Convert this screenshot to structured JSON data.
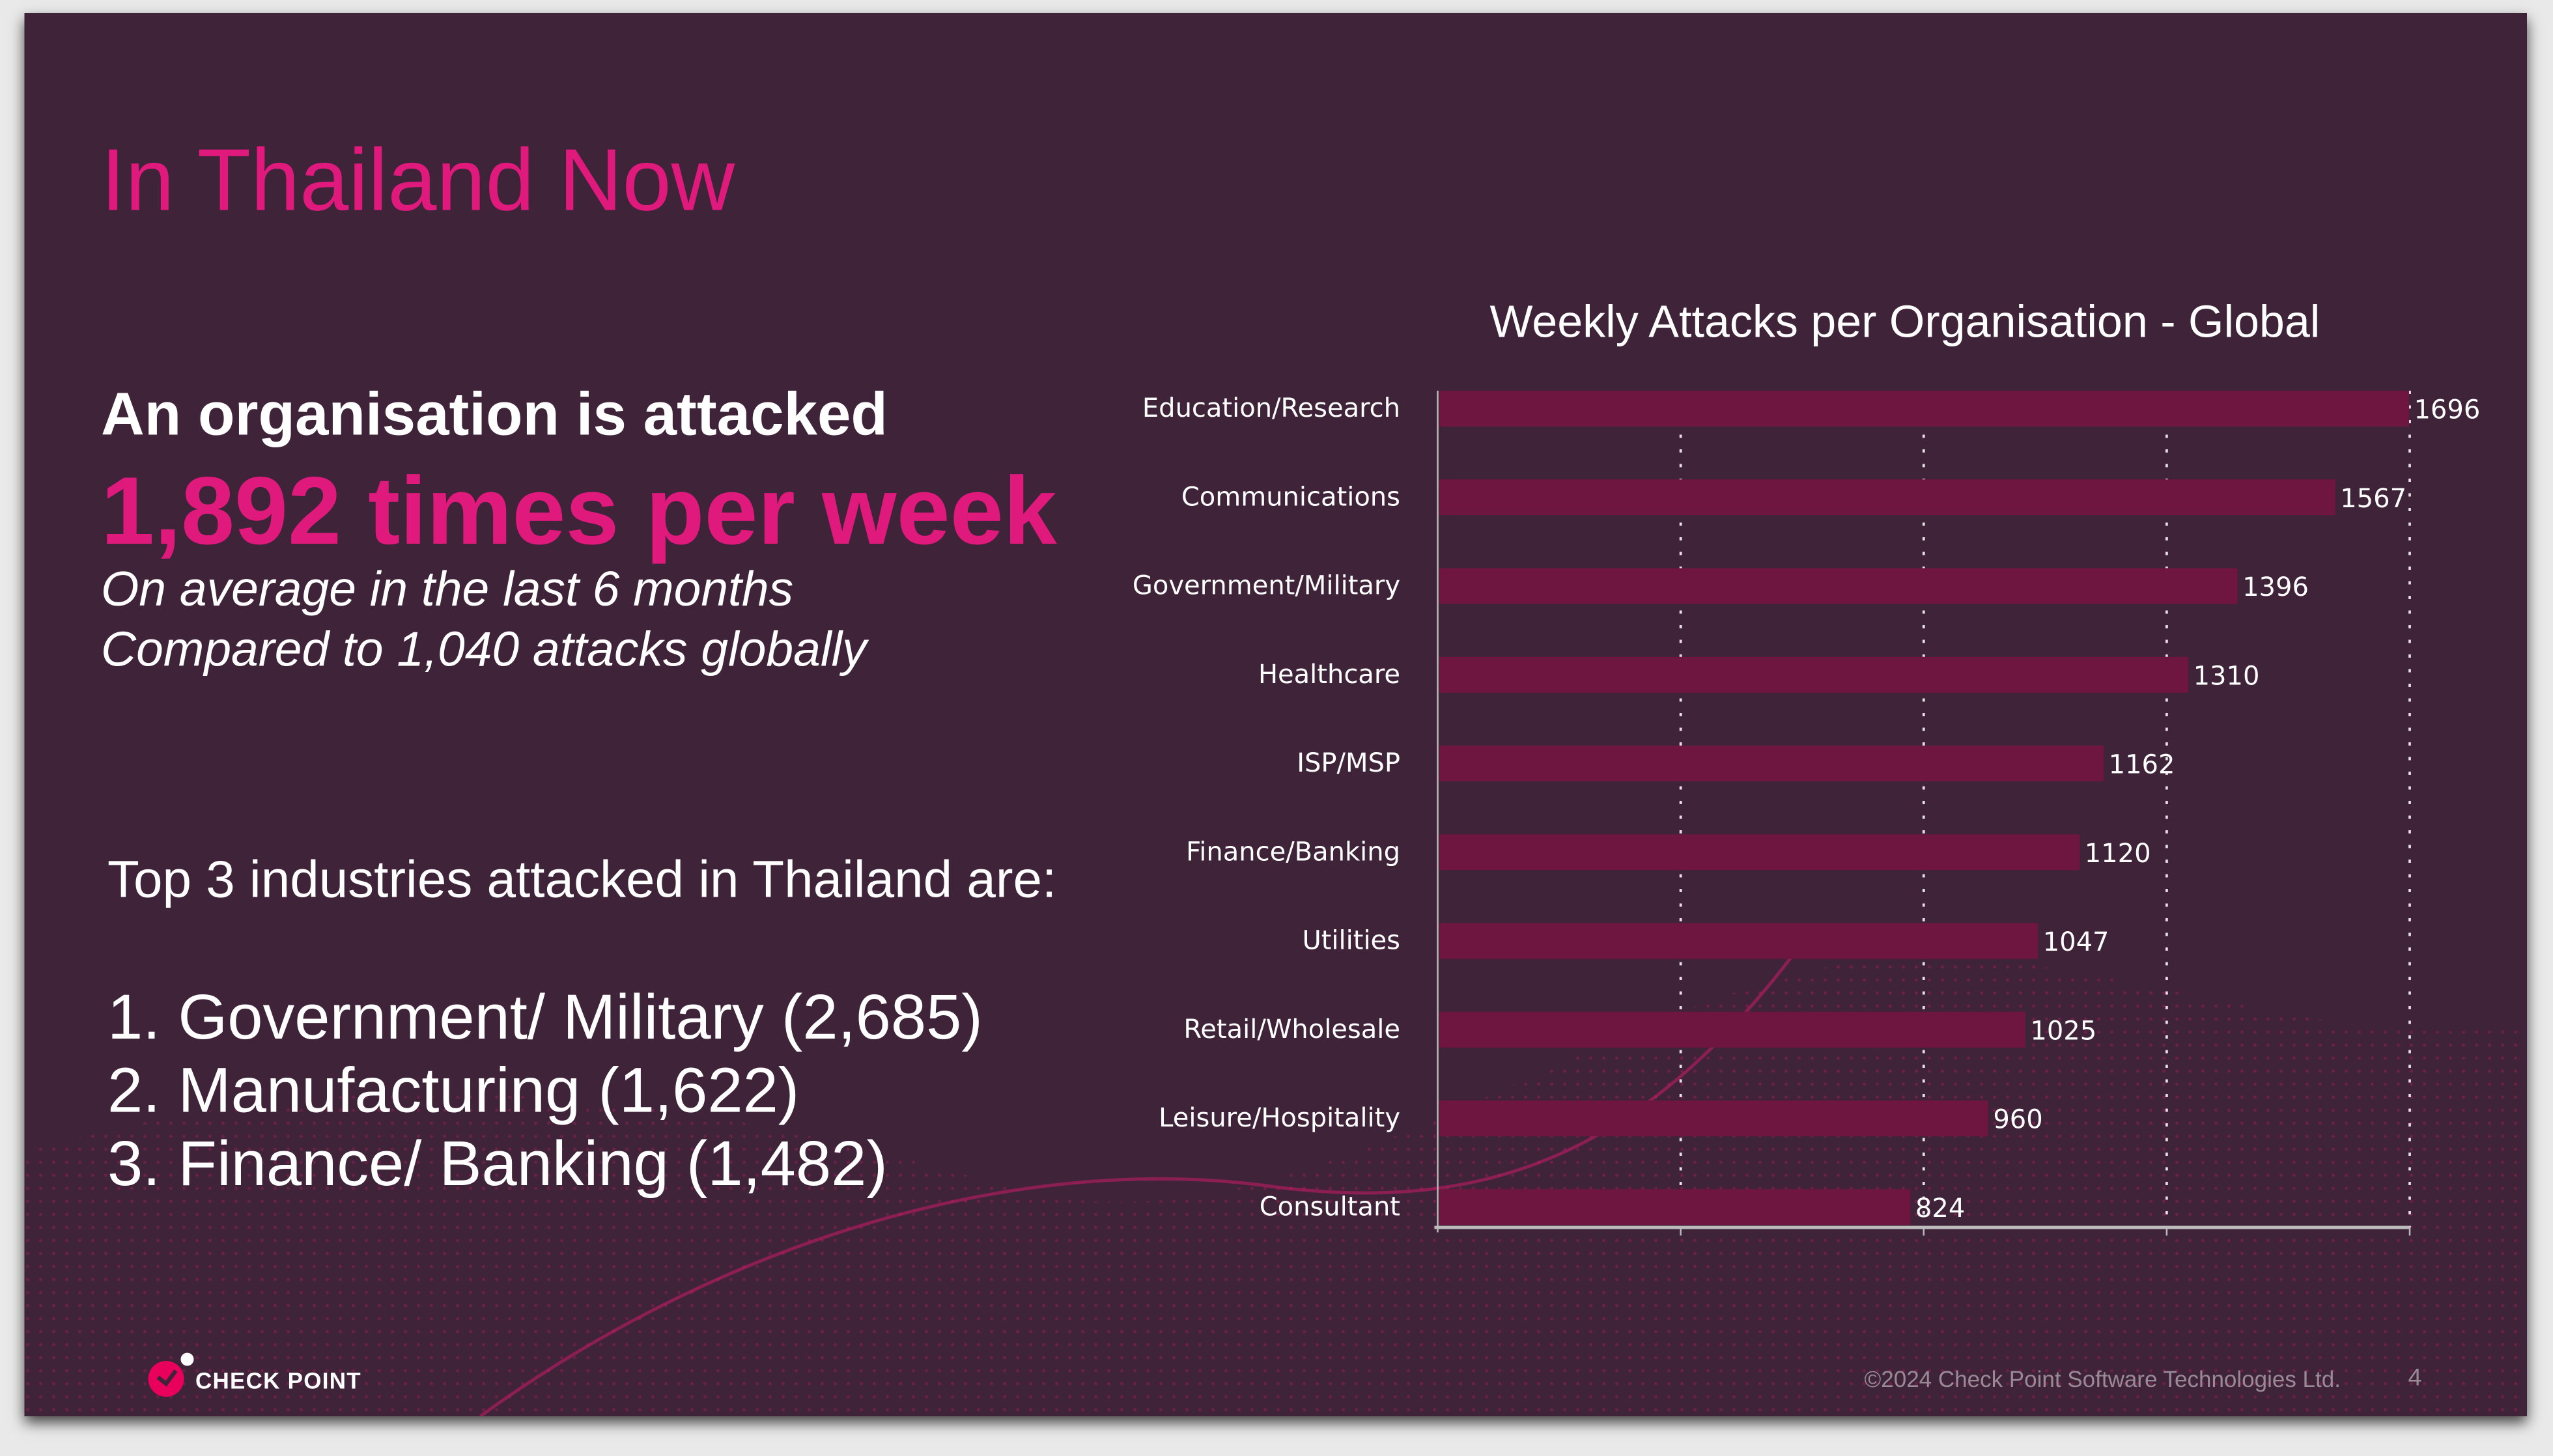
{
  "slide": {
    "title": "In Thailand Now",
    "headline": "An organisation is attacked",
    "highlight": "1,892 times per week",
    "sub1": "On average in the last 6 months",
    "sub2": "Compared to 1,040 attacks globally",
    "top3_heading": "Top 3 industries attacked in Thailand are:",
    "top3": [
      "1. Government/ Military (2,685)",
      "2. Manufacturing (1,622)",
      "3. Finance/ Banking (1,482)"
    ],
    "footer": "©2024 Check Point Software Technologies Ltd.",
    "page_number": "4",
    "logo_text": "CHECK POINT"
  },
  "colors": {
    "background": "#3f2339",
    "accent": "#e0197d",
    "bar": "#6e1540"
  },
  "chart_data": {
    "type": "bar",
    "orientation": "horizontal",
    "title": "Weekly Attacks per Organisation - Global",
    "categories": [
      "Education/Research",
      "Communications",
      "Government/Military",
      "Healthcare",
      "ISP/MSP",
      "Finance/Banking",
      "Utilities",
      "Retail/Wholesale",
      "Leisure/Hospitality",
      "Consultant"
    ],
    "values": [
      1696,
      1567,
      1396,
      1310,
      1162,
      1120,
      1047,
      1025,
      960,
      824
    ],
    "xlim": [
      0,
      1700
    ],
    "grid": "vertical dotted",
    "data_labels": true
  }
}
